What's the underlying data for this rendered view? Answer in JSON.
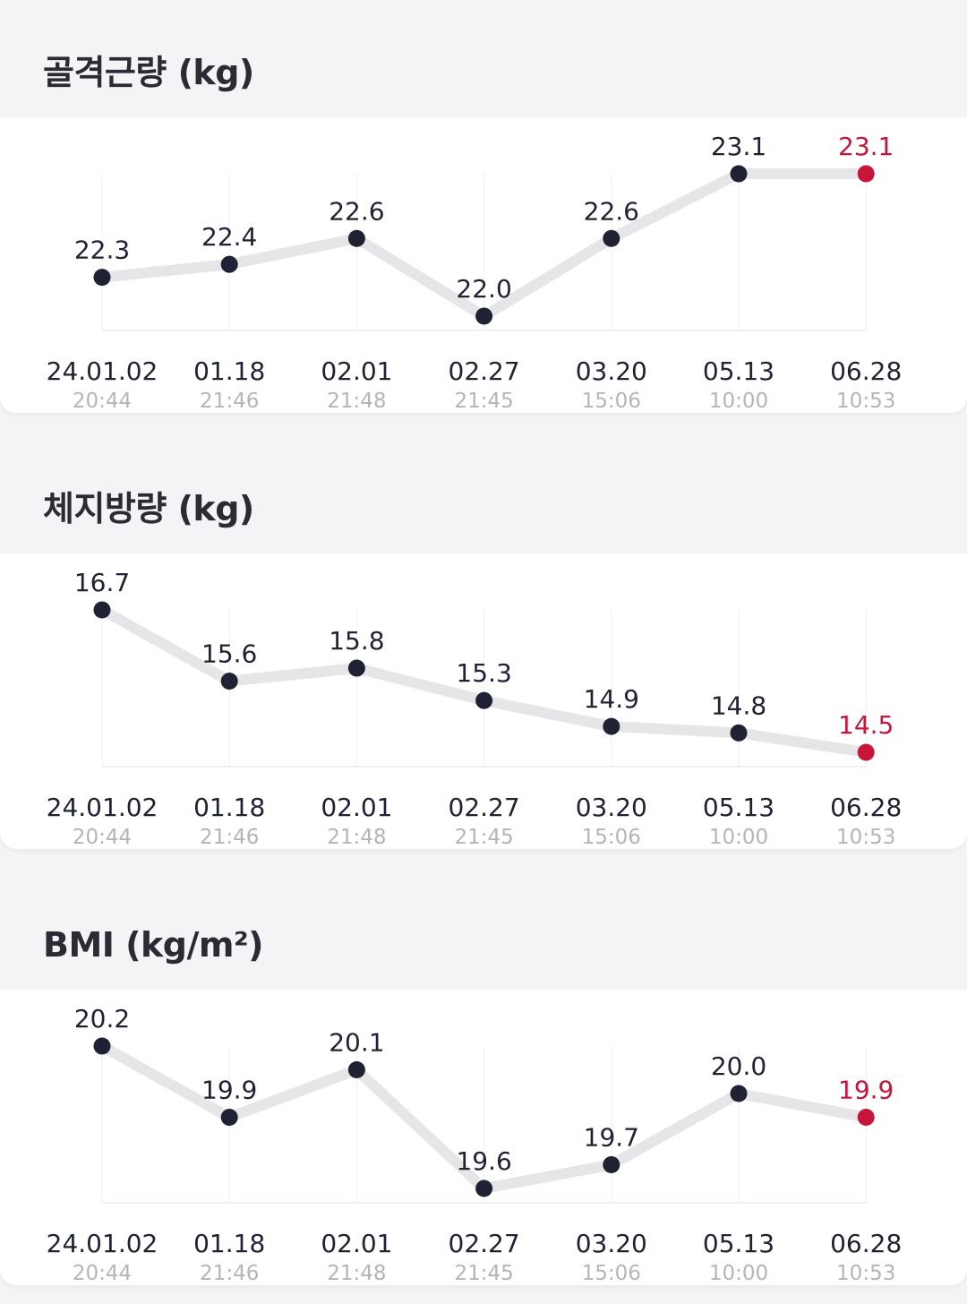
{
  "charts": [
    {
      "title": "골격근량 (kg)",
      "chart_data": {
        "type": "line",
        "title": "골격근량 (kg)",
        "categories": [
          "24.01.02",
          "01.18",
          "02.01",
          "02.27",
          "03.20",
          "05.13",
          "06.28"
        ],
        "times": [
          "20:44",
          "21:46",
          "21:48",
          "21:45",
          "15:06",
          "10:00",
          "10:53"
        ],
        "values": [
          22.3,
          22.4,
          22.6,
          22.0,
          22.6,
          23.1,
          23.1
        ],
        "value_labels": [
          "22.3",
          "22.4",
          "22.6",
          "22.0",
          "22.6",
          "23.1",
          "23.1"
        ],
        "ylim": [
          22.0,
          23.1
        ],
        "grid": "vertical",
        "highlight": "last",
        "colors": {
          "point": "#1f2233",
          "latest": "#c8163a",
          "line": "#e6e6e8"
        }
      }
    },
    {
      "title": "체지방량 (kg)",
      "chart_data": {
        "type": "line",
        "title": "체지방량 (kg)",
        "categories": [
          "24.01.02",
          "01.18",
          "02.01",
          "02.27",
          "03.20",
          "05.13",
          "06.28"
        ],
        "times": [
          "20:44",
          "21:46",
          "21:48",
          "21:45",
          "15:06",
          "10:00",
          "10:53"
        ],
        "values": [
          16.7,
          15.6,
          15.8,
          15.3,
          14.9,
          14.8,
          14.5
        ],
        "value_labels": [
          "16.7",
          "15.6",
          "15.8",
          "15.3",
          "14.9",
          "14.8",
          "14.5"
        ],
        "ylim": [
          14.5,
          16.7
        ],
        "grid": "vertical",
        "highlight": "last",
        "colors": {
          "point": "#1f2233",
          "latest": "#c8163a",
          "line": "#e6e6e8"
        }
      }
    },
    {
      "title": "BMI (kg/m²)",
      "chart_data": {
        "type": "line",
        "title": "BMI (kg/m²)",
        "categories": [
          "24.01.02",
          "01.18",
          "02.01",
          "02.27",
          "03.20",
          "05.13",
          "06.28"
        ],
        "times": [
          "20:44",
          "21:46",
          "21:48",
          "21:45",
          "15:06",
          "10:00",
          "10:53"
        ],
        "values": [
          20.2,
          19.9,
          20.1,
          19.6,
          19.7,
          20.0,
          19.9
        ],
        "value_labels": [
          "20.2",
          "19.9",
          "20.1",
          "19.6",
          "19.7",
          "20.0",
          "19.9"
        ],
        "ylim": [
          19.6,
          20.2
        ],
        "grid": "vertical",
        "highlight": "last",
        "colors": {
          "point": "#1f2233",
          "latest": "#c8163a",
          "line": "#e6e6e8"
        }
      }
    }
  ]
}
